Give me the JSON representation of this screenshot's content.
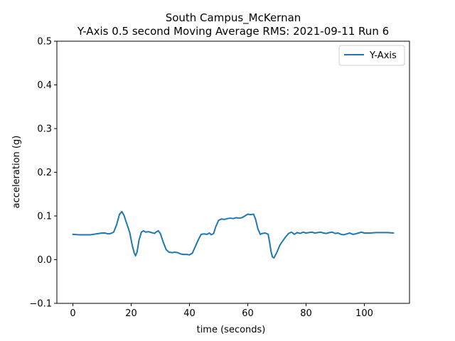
{
  "chart_data": {
    "type": "line",
    "title": "South Campus_McKernan",
    "subtitle": "Y-Axis 0.5 second Moving Average RMS: 2021-09-11 Run 6",
    "xlabel": "time (seconds)",
    "ylabel": "acceleration (g)",
    "xlim": [
      -5.5,
      115.5
    ],
    "ylim": [
      -0.1,
      0.5
    ],
    "xticks": [
      0,
      20,
      40,
      60,
      80,
      100
    ],
    "yticks": [
      -0.1,
      0.0,
      0.1,
      0.2,
      0.3,
      0.4,
      0.5
    ],
    "xtick_labels": [
      "0",
      "20",
      "40",
      "60",
      "80",
      "100"
    ],
    "ytick_labels": [
      "−0.1",
      "0.0",
      "0.1",
      "0.2",
      "0.3",
      "0.4",
      "0.5"
    ],
    "grid": false,
    "legend_position": "top-right",
    "colors": {
      "series": "#1f77b4",
      "frame": "#000000",
      "legend_border": "#cccccc"
    },
    "series": [
      {
        "name": "Y-Axis",
        "points": [
          [
            0,
            0.058
          ],
          [
            2,
            0.057
          ],
          [
            4,
            0.057
          ],
          [
            6,
            0.057
          ],
          [
            8,
            0.059
          ],
          [
            10,
            0.061
          ],
          [
            11,
            0.061
          ],
          [
            12,
            0.059
          ],
          [
            13,
            0.06
          ],
          [
            14,
            0.063
          ],
          [
            15,
            0.08
          ],
          [
            16,
            0.104
          ],
          [
            16.8,
            0.11
          ],
          [
            17.5,
            0.102
          ],
          [
            18.5,
            0.082
          ],
          [
            19.5,
            0.062
          ],
          [
            20.3,
            0.035
          ],
          [
            21,
            0.016
          ],
          [
            21.5,
            0.009
          ],
          [
            22,
            0.017
          ],
          [
            22.7,
            0.045
          ],
          [
            23.5,
            0.063
          ],
          [
            24.2,
            0.066
          ],
          [
            25,
            0.063
          ],
          [
            26,
            0.064
          ],
          [
            27,
            0.062
          ],
          [
            28,
            0.06
          ],
          [
            28.5,
            0.063
          ],
          [
            29.3,
            0.066
          ],
          [
            30,
            0.06
          ],
          [
            31,
            0.04
          ],
          [
            32,
            0.023
          ],
          [
            33,
            0.017
          ],
          [
            34,
            0.016
          ],
          [
            35,
            0.017
          ],
          [
            36,
            0.016
          ],
          [
            37,
            0.013
          ],
          [
            38,
            0.012
          ],
          [
            39,
            0.012
          ],
          [
            40,
            0.011
          ],
          [
            41,
            0.015
          ],
          [
            42,
            0.03
          ],
          [
            43,
            0.045
          ],
          [
            44,
            0.058
          ],
          [
            45,
            0.059
          ],
          [
            46,
            0.058
          ],
          [
            46.8,
            0.061
          ],
          [
            47.5,
            0.057
          ],
          [
            48.3,
            0.06
          ],
          [
            49,
            0.075
          ],
          [
            50,
            0.09
          ],
          [
            51,
            0.093
          ],
          [
            52,
            0.092
          ],
          [
            53,
            0.094
          ],
          [
            54,
            0.095
          ],
          [
            55,
            0.094
          ],
          [
            56,
            0.096
          ],
          [
            57,
            0.095
          ],
          [
            58,
            0.096
          ],
          [
            59,
            0.1
          ],
          [
            60,
            0.104
          ],
          [
            61,
            0.103
          ],
          [
            62,
            0.104
          ],
          [
            62.7,
            0.092
          ],
          [
            63.5,
            0.07
          ],
          [
            64.3,
            0.058
          ],
          [
            65,
            0.06
          ],
          [
            66,
            0.061
          ],
          [
            67,
            0.058
          ],
          [
            67.5,
            0.04
          ],
          [
            68,
            0.018
          ],
          [
            68.5,
            0.006
          ],
          [
            69,
            0.004
          ],
          [
            70,
            0.017
          ],
          [
            71,
            0.033
          ],
          [
            72,
            0.043
          ],
          [
            73,
            0.052
          ],
          [
            74,
            0.06
          ],
          [
            75,
            0.063
          ],
          [
            76,
            0.058
          ],
          [
            77,
            0.062
          ],
          [
            78,
            0.06
          ],
          [
            79,
            0.063
          ],
          [
            80,
            0.061
          ],
          [
            81,
            0.062
          ],
          [
            82,
            0.063
          ],
          [
            83,
            0.061
          ],
          [
            84,
            0.062
          ],
          [
            85,
            0.063
          ],
          [
            86,
            0.061
          ],
          [
            87,
            0.06
          ],
          [
            88,
            0.062
          ],
          [
            89,
            0.063
          ],
          [
            90,
            0.06
          ],
          [
            91,
            0.061
          ],
          [
            92,
            0.058
          ],
          [
            93,
            0.057
          ],
          [
            94,
            0.059
          ],
          [
            95,
            0.061
          ],
          [
            96,
            0.058
          ],
          [
            97,
            0.059
          ],
          [
            98,
            0.061
          ],
          [
            99,
            0.063
          ],
          [
            100,
            0.061
          ],
          [
            102,
            0.061
          ],
          [
            104,
            0.062
          ],
          [
            106,
            0.062
          ],
          [
            108,
            0.062
          ],
          [
            110,
            0.061
          ]
        ]
      }
    ]
  }
}
